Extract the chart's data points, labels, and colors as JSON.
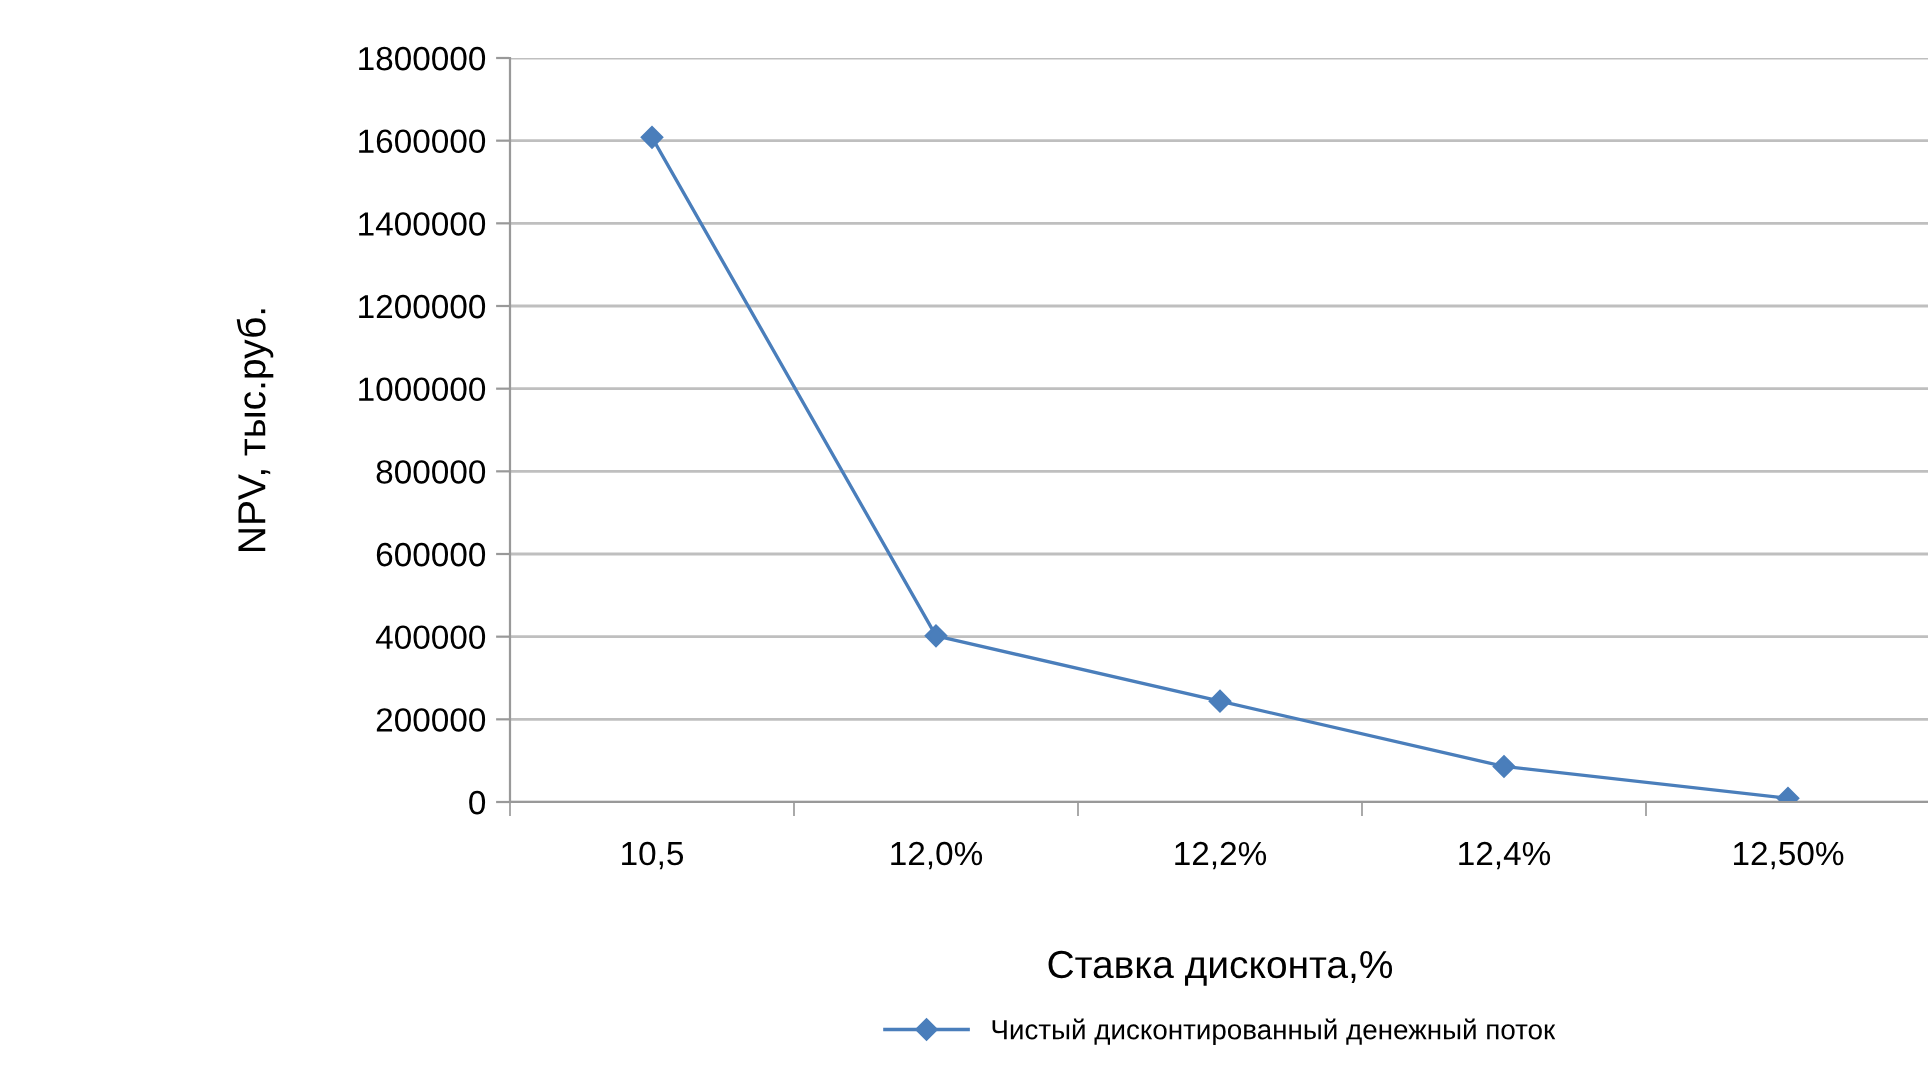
{
  "chart_data": {
    "type": "line",
    "xlabel": "Ставка дисконта,%",
    "ylabel": "NPV, тыс.руб.",
    "categories": [
      "10,5",
      "12,0%",
      "12,2%",
      "12,4%",
      "12,50%"
    ],
    "series": [
      {
        "name": "Чистый дисконтированный денежный поток",
        "color": "#4a7ebb",
        "values": [
          1608000,
          402000,
          244000,
          86000,
          9000
        ]
      }
    ],
    "ylim": [
      0,
      1800000
    ],
    "yticks": [
      0,
      200000,
      400000,
      600000,
      800000,
      1000000,
      1200000,
      1400000,
      1600000,
      1800000
    ],
    "grid": "y",
    "legend": "bottom",
    "marker": "diamond",
    "line_style": "solid"
  }
}
